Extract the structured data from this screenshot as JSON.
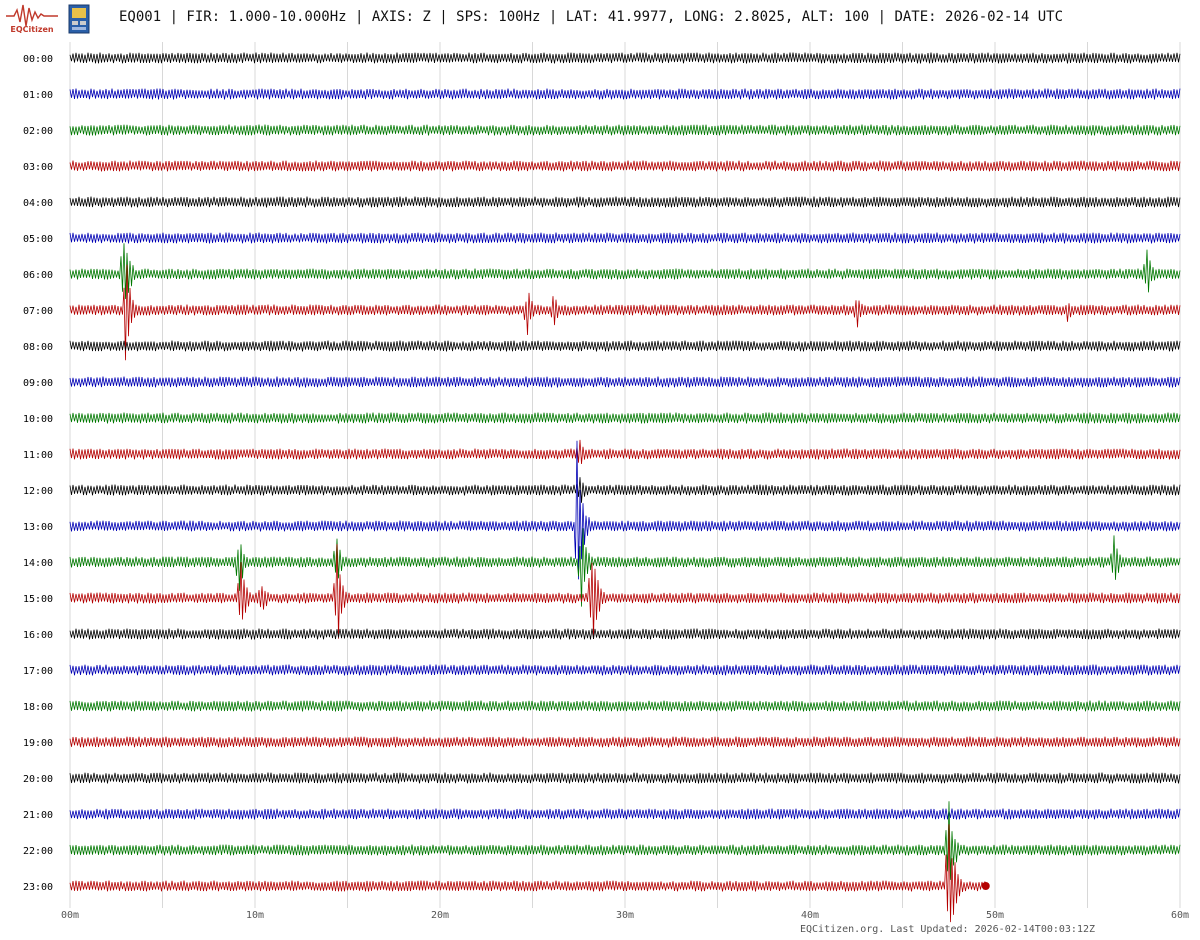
{
  "header": {
    "logo_text": "EQCitizen",
    "title": "EQ001 | FIR: 1.000-10.000Hz | AXIS: Z | SPS: 100Hz | LAT: 41.9977, LONG: 2.8025, ALT: 100 | DATE: 2026-02-14 UTC"
  },
  "footer": {
    "last_updated": "EQCitizen.org. Last Updated: 2026-02-14T00:03:12Z"
  },
  "chart_data": {
    "type": "line",
    "title": "EQ001 | FIR: 1.000-10.000Hz | AXIS: Z | SPS: 100Hz | LAT: 41.9977, LONG: 2.8025, ALT: 100 | DATE: 2026-02-14 UTC",
    "xlabel": "",
    "ylabel": "",
    "xlim": [
      0,
      60
    ],
    "x_tick_labels": [
      "00m",
      "10m",
      "20m",
      "30m",
      "40m",
      "50m",
      "60m"
    ],
    "row_labels": [
      "00:00",
      "01:00",
      "02:00",
      "03:00",
      "04:00",
      "05:00",
      "06:00",
      "07:00",
      "08:00",
      "09:00",
      "10:00",
      "11:00",
      "12:00",
      "13:00",
      "14:00",
      "15:00",
      "16:00",
      "17:00",
      "18:00",
      "19:00",
      "20:00",
      "21:00",
      "22:00",
      "23:00"
    ],
    "colors": [
      "#000000",
      "#0000b4",
      "#007800",
      "#b40000"
    ],
    "grid": true,
    "partial_last_row_end_minute": 49.5,
    "events": [
      {
        "row": 6,
        "minute": 2.9,
        "amplitude": 1.5
      },
      {
        "row": 6,
        "minute": 58.2,
        "amplitude": 0.8
      },
      {
        "row": 7,
        "minute": 3.0,
        "amplitude": 1.7
      },
      {
        "row": 7,
        "minute": 24.7,
        "amplitude": 0.8
      },
      {
        "row": 7,
        "minute": 26.1,
        "amplitude": 0.6
      },
      {
        "row": 7,
        "minute": 42.5,
        "amplitude": 0.7
      },
      {
        "row": 7,
        "minute": 53.9,
        "amplitude": 0.4
      },
      {
        "row": 11,
        "minute": 27.5,
        "amplitude": 0.7
      },
      {
        "row": 12,
        "minute": 27.5,
        "amplitude": 0.6
      },
      {
        "row": 13,
        "minute": 27.4,
        "amplitude": 2.5
      },
      {
        "row": 14,
        "minute": 9.1,
        "amplitude": 1.0
      },
      {
        "row": 14,
        "minute": 14.4,
        "amplitude": 0.8
      },
      {
        "row": 14,
        "minute": 27.6,
        "amplitude": 1.5
      },
      {
        "row": 14,
        "minute": 56.4,
        "amplitude": 0.9
      },
      {
        "row": 15,
        "minute": 9.2,
        "amplitude": 1.2
      },
      {
        "row": 15,
        "minute": 10.3,
        "amplitude": 0.7
      },
      {
        "row": 15,
        "minute": 14.4,
        "amplitude": 1.7
      },
      {
        "row": 15,
        "minute": 28.2,
        "amplitude": 1.7
      },
      {
        "row": 22,
        "minute": 47.5,
        "amplitude": 1.5
      },
      {
        "row": 23,
        "minute": 47.5,
        "amplitude": 2.3
      }
    ]
  }
}
